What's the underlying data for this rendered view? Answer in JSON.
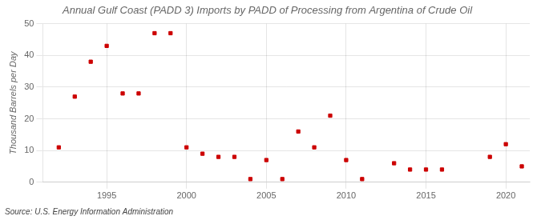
{
  "chart_data": {
    "type": "scatter",
    "title": "Annual Gulf Coast (PADD 3) Imports by PADD of Processing from Argentina of Crude Oil",
    "ylabel": "Thousand Barrels per Day",
    "annotation": "Source: U.S. Energy Information Administration",
    "x": [
      1992,
      1993,
      1994,
      1995,
      1996,
      1997,
      1998,
      1999,
      2000,
      2001,
      2002,
      2003,
      2004,
      2005,
      2006,
      2007,
      2008,
      2009,
      2010,
      2011,
      2013,
      2014,
      2015,
      2016,
      2019,
      2020,
      2021
    ],
    "values": [
      11,
      27,
      38,
      43,
      28,
      28,
      47,
      47,
      11,
      9,
      8,
      8,
      1,
      7,
      1,
      16,
      11,
      21,
      7,
      1,
      6,
      4,
      4,
      4,
      8,
      12,
      5
    ],
    "color": "#cc0000",
    "marker": "square",
    "xlim": [
      1991,
      2021.5
    ],
    "xticks": [
      1995,
      2000,
      2005,
      2010,
      2015,
      2020
    ],
    "ylim": [
      0,
      50
    ],
    "yticks": [
      0,
      10,
      20,
      30,
      40,
      50
    ],
    "grid": true
  }
}
